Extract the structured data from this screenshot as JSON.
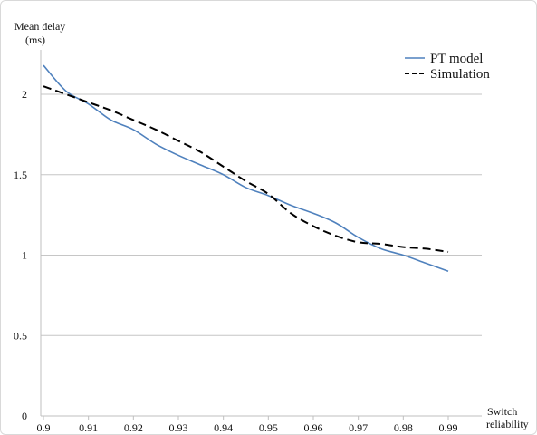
{
  "chart_data": {
    "type": "line",
    "title": "",
    "ylabel": "Mean delay (ms)",
    "ylabel_lines": [
      "Mean delay",
      "(ms)"
    ],
    "xlabel": "Switch reliability",
    "xlabel_lines": [
      "Switch",
      "reliability"
    ],
    "xlim": [
      0.9,
      0.99
    ],
    "ylim": [
      0,
      2.25
    ],
    "x_ticks": [
      "0.9",
      "0.91",
      "0.92",
      "0.93",
      "0.94",
      "0.95",
      "0.96",
      "0.97",
      "0.98",
      "0.99"
    ],
    "y_ticks": [
      "0",
      "0.5",
      "1",
      "1.5",
      "2"
    ],
    "grid": true,
    "legend_position": "top-right",
    "series": [
      {
        "name": "PT model",
        "style": "solid",
        "color": "#4f81bd",
        "x": [
          0.9,
          0.905,
          0.91,
          0.915,
          0.92,
          0.925,
          0.93,
          0.935,
          0.94,
          0.945,
          0.95,
          0.955,
          0.96,
          0.965,
          0.97,
          0.975,
          0.98,
          0.985,
          0.99
        ],
        "y": [
          2.18,
          2.02,
          1.94,
          1.84,
          1.78,
          1.69,
          1.62,
          1.56,
          1.5,
          1.42,
          1.37,
          1.31,
          1.26,
          1.2,
          1.11,
          1.04,
          1.0,
          0.95,
          0.9
        ]
      },
      {
        "name": "Simulation",
        "style": "dashed",
        "color": "#000000",
        "x": [
          0.9,
          0.905,
          0.91,
          0.915,
          0.92,
          0.925,
          0.93,
          0.935,
          0.94,
          0.945,
          0.95,
          0.955,
          0.96,
          0.965,
          0.97,
          0.975,
          0.98,
          0.985,
          0.99
        ],
        "y": [
          2.05,
          2.0,
          1.95,
          1.9,
          1.84,
          1.78,
          1.71,
          1.64,
          1.55,
          1.46,
          1.38,
          1.26,
          1.18,
          1.12,
          1.08,
          1.07,
          1.05,
          1.04,
          1.02
        ]
      }
    ]
  }
}
